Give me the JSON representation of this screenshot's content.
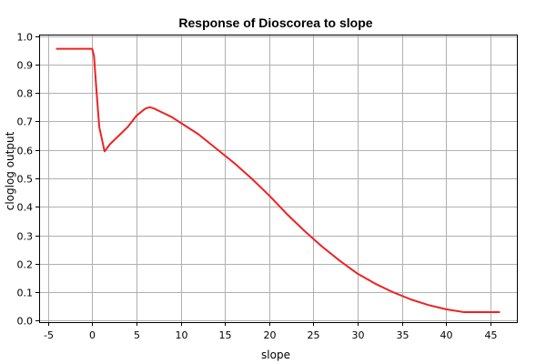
{
  "chart_data": {
    "type": "line",
    "title": "Response of Dioscorea to slope",
    "xlabel": "slope",
    "ylabel": "cloglog output",
    "xlim": [
      -6,
      48
    ],
    "ylim": [
      -0.005,
      1.005
    ],
    "x_ticks": [
      -5,
      0,
      5,
      10,
      15,
      20,
      25,
      30,
      35,
      40,
      45
    ],
    "x_tick_labels": [
      "-5",
      "0",
      "5",
      "10",
      "15",
      "20",
      "25",
      "30",
      "35",
      "40",
      "45"
    ],
    "y_ticks": [
      0.0,
      0.1,
      0.2,
      0.3,
      0.4,
      0.5,
      0.6,
      0.7,
      0.8,
      0.9,
      1.0
    ],
    "y_tick_labels": [
      "0.0",
      "0.1",
      "0.2",
      "0.3",
      "0.4",
      "0.5",
      "0.6",
      "0.7",
      "0.8",
      "0.9",
      "1.0"
    ],
    "grid": true,
    "series": [
      {
        "color": "#ee2222",
        "x": [
          -4,
          0,
          0.2,
          0.5,
          0.8,
          1.4,
          2,
          3,
          4,
          5,
          6,
          6.5,
          7,
          8,
          9,
          10,
          12,
          14,
          16,
          18,
          20,
          22,
          24,
          26,
          28,
          30,
          32,
          34,
          36,
          38,
          40,
          42,
          44,
          46
        ],
        "y": [
          0.955,
          0.955,
          0.93,
          0.8,
          0.68,
          0.595,
          0.62,
          0.65,
          0.68,
          0.72,
          0.745,
          0.75,
          0.745,
          0.73,
          0.715,
          0.695,
          0.655,
          0.605,
          0.555,
          0.5,
          0.44,
          0.375,
          0.315,
          0.26,
          0.21,
          0.165,
          0.13,
          0.1,
          0.075,
          0.055,
          0.04,
          0.03,
          0.03,
          0.03
        ]
      }
    ]
  }
}
